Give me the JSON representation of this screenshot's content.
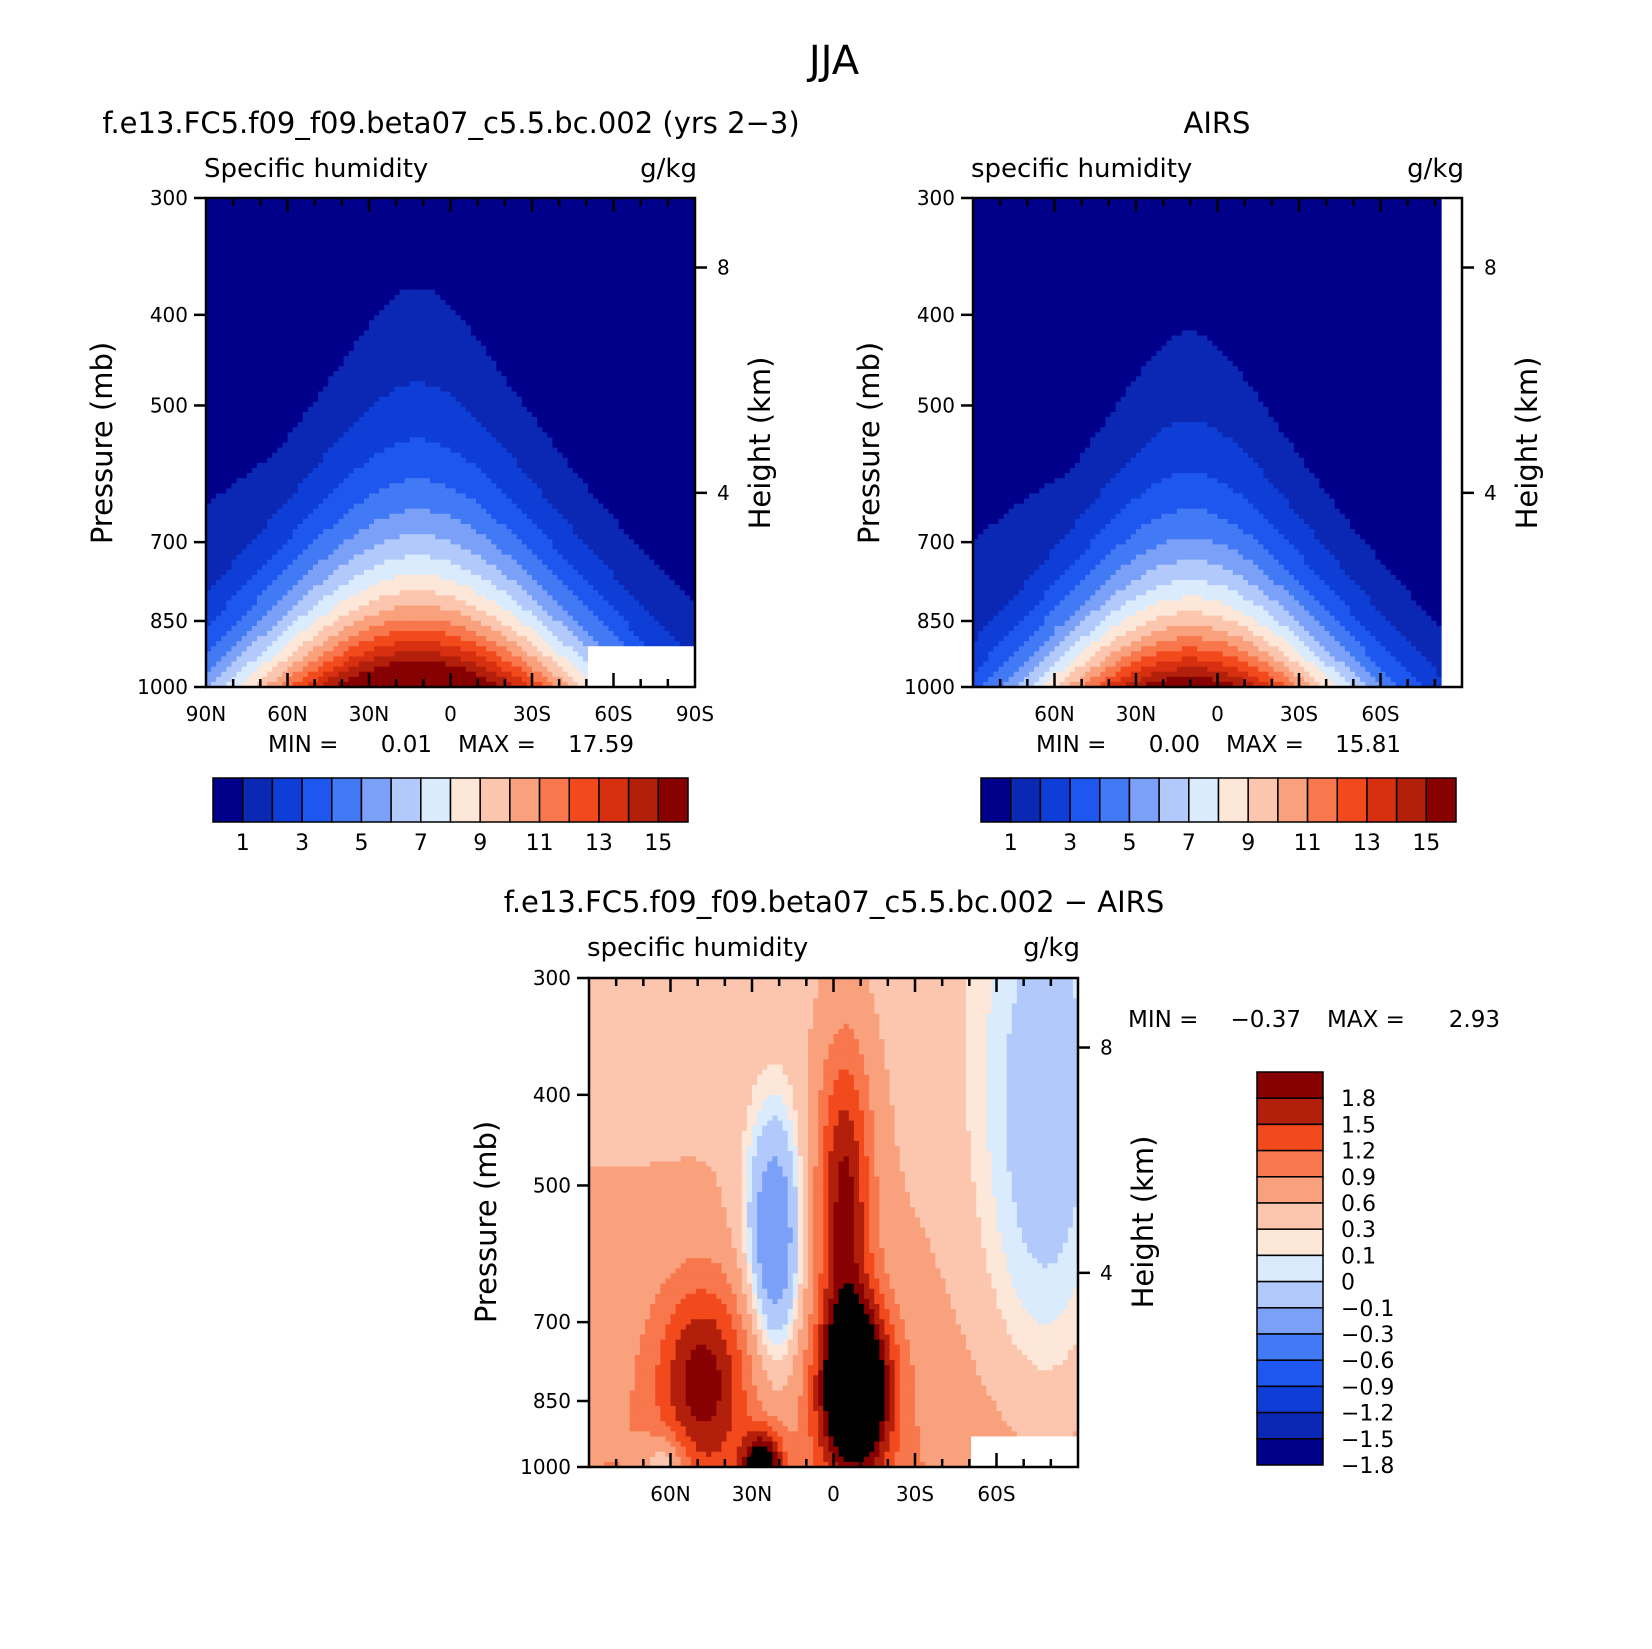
{
  "figure": {
    "title": "JJA"
  },
  "chart_data": [
    {
      "type": "heatmap",
      "title": "f.e13.FC5.f09_f09.beta07_c5.5.bc.002 (yrs 2−3)",
      "variable": "Specific humidity",
      "units": "g/kg",
      "xlabel": "",
      "ylabel": "Pressure (mb)",
      "y2label": "Height (km)",
      "x_ticks": [
        "90N",
        "60N",
        "30N",
        "0",
        "30S",
        "60S",
        "90S"
      ],
      "x_tick_lat": [
        90,
        60,
        30,
        0,
        -30,
        -60,
        -90
      ],
      "xlim": [
        90,
        -90
      ],
      "y_ticks": [
        "300",
        "400",
        "500",
        "700",
        "850",
        "1000"
      ],
      "ylim": [
        1000,
        300
      ],
      "y_scale": "log",
      "y2_ticks": [
        "8",
        "4"
      ],
      "min_label": "MIN =",
      "min_value": "0.01",
      "max_label": "MAX =",
      "max_value": "17.59",
      "colorbar": {
        "orientation": "horizontal",
        "colors": [
          "#00008b",
          "#0a28b4",
          "#0f3ed6",
          "#1e56f0",
          "#4279f4",
          "#7aa0f8",
          "#b1c9fb",
          "#d9ebfc",
          "#fde7d8",
          "#fcc6ae",
          "#f9a07c",
          "#f8774c",
          "#f24a1c",
          "#d63010",
          "#b21f0b",
          "#870103"
        ],
        "labels": [
          "1",
          "3",
          "5",
          "7",
          "9",
          "11",
          "13",
          "15"
        ]
      },
      "features": {
        "moist_peak_lat": 10,
        "peak_value": 17.59,
        "blank_region": "south of 50S below 900 mb"
      }
    },
    {
      "type": "heatmap",
      "title": "AIRS",
      "variable": "specific humidity",
      "units": "g/kg",
      "xlabel": "",
      "ylabel": "Pressure (mb)",
      "y2label": "Height (km)",
      "x_ticks": [
        "60N",
        "30N",
        "0",
        "30S",
        "60S"
      ],
      "x_tick_lat": [
        60,
        30,
        0,
        -30,
        -60
      ],
      "xlim": [
        90,
        -90
      ],
      "y_ticks": [
        "300",
        "400",
        "500",
        "700",
        "850",
        "1000"
      ],
      "ylim": [
        1000,
        300
      ],
      "y_scale": "log",
      "y2_ticks": [
        "8",
        "4"
      ],
      "min_label": "MIN =",
      "min_value": "0.00",
      "max_label": "MAX =",
      "max_value": "15.81",
      "colorbar": {
        "orientation": "horizontal",
        "colors": [
          "#00008b",
          "#0a28b4",
          "#0f3ed6",
          "#1e56f0",
          "#4279f4",
          "#7aa0f8",
          "#b1c9fb",
          "#d9ebfc",
          "#fde7d8",
          "#fcc6ae",
          "#f9a07c",
          "#f8774c",
          "#f24a1c",
          "#d63010",
          "#b21f0b",
          "#870103"
        ],
        "labels": [
          "1",
          "3",
          "5",
          "7",
          "9",
          "11",
          "13",
          "15"
        ]
      },
      "features": {
        "moist_peak_lat": 10,
        "peak_value": 15.81
      }
    },
    {
      "type": "heatmap",
      "title": "f.e13.FC5.f09_f09.beta07_c5.5.bc.002 − AIRS",
      "variable": "specific humidity",
      "units": "g/kg",
      "xlabel": "",
      "ylabel": "Pressure (mb)",
      "y2label": "Height (km)",
      "x_ticks": [
        "60N",
        "30N",
        "0",
        "30S",
        "60S"
      ],
      "x_tick_lat": [
        60,
        30,
        0,
        -30,
        -60
      ],
      "xlim": [
        90,
        -90
      ],
      "y_ticks": [
        "300",
        "400",
        "500",
        "700",
        "850",
        "1000"
      ],
      "ylim": [
        1000,
        300
      ],
      "y_scale": "log",
      "y2_ticks": [
        "8",
        "4"
      ],
      "min_label": "MIN =",
      "min_value": "−0.37",
      "max_label": "MAX =",
      "max_value": "2.93",
      "colorbar": {
        "orientation": "vertical",
        "colors_top_to_bottom": [
          "#870103",
          "#b21f0b",
          "#f24a1c",
          "#f8774c",
          "#f9a07c",
          "#fcc6ae",
          "#fde7d8",
          "#d9ebfc",
          "#b1c9fb",
          "#7aa0f8",
          "#4279f4",
          "#1e56f0",
          "#0f3ed6",
          "#0a28b4",
          "#00008b"
        ],
        "labels": [
          "1.8",
          "1.5",
          "1.2",
          "0.9",
          "0.6",
          "0.3",
          "0.1",
          "0",
          "−0.1",
          "−0.3",
          "−0.6",
          "−0.9",
          "−1.2",
          "−1.5",
          "−1.8"
        ]
      },
      "features": {
        "max_diff_lat": -8,
        "max_diff_pressure": 850,
        "secondary_max_lat": 48,
        "negative_region_lat": [
          68,
          55
        ],
        "blank_region": "south of 50S below 930 mb"
      }
    }
  ]
}
